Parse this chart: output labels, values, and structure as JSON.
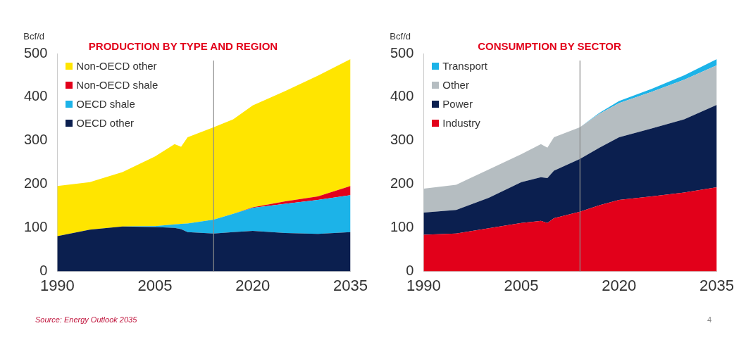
{
  "chart_data": [
    {
      "type": "area",
      "title": "PRODUCTION BY TYPE AND REGION",
      "ylabel": "Bcf/d",
      "stacked": true,
      "legend": "top left",
      "x": [
        1990,
        1995,
        2000,
        2005,
        2008,
        2009,
        2010,
        2014,
        2017,
        2020,
        2025,
        2030,
        2035
      ],
      "series": [
        {
          "name": "OECD other",
          "color": "#0b1f4f",
          "values": [
            81,
            96,
            103,
            102,
            100,
            97,
            90,
            87,
            90,
            93,
            88,
            86,
            90
          ]
        },
        {
          "name": "OECD shale",
          "color": "#1cb3e8",
          "values": [
            0,
            0,
            0,
            2,
            8,
            12,
            20,
            32,
            42,
            53,
            67,
            78,
            85
          ]
        },
        {
          "name": "Non-OECD shale",
          "color": "#e2001a",
          "values": [
            0,
            0,
            0,
            0,
            0,
            0,
            0,
            0,
            0,
            1,
            6,
            8,
            21
          ]
        },
        {
          "name": "Non-OECD other",
          "color": "#ffe500",
          "values": [
            115,
            109,
            125,
            160,
            184,
            177,
            198,
            212,
            217,
            234,
            253,
            277,
            291
          ]
        }
      ],
      "xlim": [
        1990,
        2035
      ],
      "xticks": [
        1990,
        2005,
        2020,
        2035
      ],
      "ylim": [
        0,
        500
      ],
      "yticks": [
        0,
        100,
        200,
        300,
        400,
        500
      ],
      "ref_lines": [
        {
          "axis": "x",
          "value": 2014,
          "color": "#8c8c8c"
        }
      ],
      "annotations": [
        "Source: Energy Outlook 2035"
      ]
    },
    {
      "type": "area",
      "title": "CONSUMPTION BY SECTOR",
      "ylabel": "Bcf/d",
      "stacked": true,
      "legend": "top left",
      "x": [
        1990,
        1995,
        2000,
        2005,
        2008,
        2009,
        2010,
        2014,
        2017,
        2020,
        2025,
        2030,
        2035
      ],
      "series": [
        {
          "name": "Industry",
          "color": "#e2001a",
          "values": [
            84,
            87,
            99,
            111,
            116,
            111,
            122,
            137,
            152,
            164,
            172,
            181,
            193
          ]
        },
        {
          "name": "Power",
          "color": "#0b1f4f",
          "values": [
            51,
            54,
            70,
            94,
            100,
            103,
            109,
            121,
            132,
            144,
            156,
            168,
            189
          ]
        },
        {
          "name": "Other",
          "color": "#b5bdc1",
          "values": [
            55,
            58,
            65,
            64,
            76,
            70,
            77,
            73,
            78,
            78,
            84,
            91,
            91
          ]
        },
        {
          "name": "Transport",
          "color": "#1cb3e8",
          "values": [
            0,
            0,
            0,
            0,
            0,
            0,
            0,
            0,
            2,
            5,
            7,
            10,
            14
          ]
        }
      ],
      "xlim": [
        1990,
        2035
      ],
      "xticks": [
        1990,
        2005,
        2020,
        2035
      ],
      "ylim": [
        0,
        500
      ],
      "yticks": [
        0,
        100,
        200,
        300,
        400,
        500
      ],
      "ref_lines": [
        {
          "axis": "x",
          "value": 2014,
          "color": "#8c8c8c"
        }
      ],
      "annotations": [
        "4"
      ]
    }
  ]
}
